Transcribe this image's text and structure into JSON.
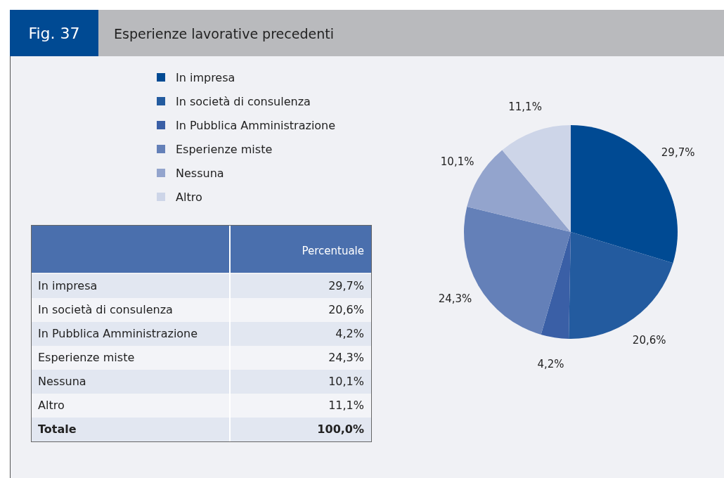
{
  "chart_data": {
    "type": "pie",
    "title": "Esperienze lavorative precedenti",
    "categories": [
      "In impresa",
      "In società di consulenza",
      "In Pubblica Amministrazione",
      "Esperienze miste",
      "Nessuna",
      "Altro"
    ],
    "values": [
      29.7,
      20.6,
      4.2,
      24.3,
      10.1,
      11.1
    ],
    "value_labels": [
      "29,7%",
      "20,6%",
      "4,2%",
      "24,3%",
      "10,1%",
      "11,1%"
    ],
    "colors": [
      "#004a93",
      "#235b9f",
      "#3a5fa6",
      "#6480b8",
      "#93a4cd",
      "#cdd5e8"
    ],
    "legend": "left",
    "annotations": [
      "Fig. 37",
      "Percentuale",
      "Totale",
      "100,0%"
    ]
  }
}
